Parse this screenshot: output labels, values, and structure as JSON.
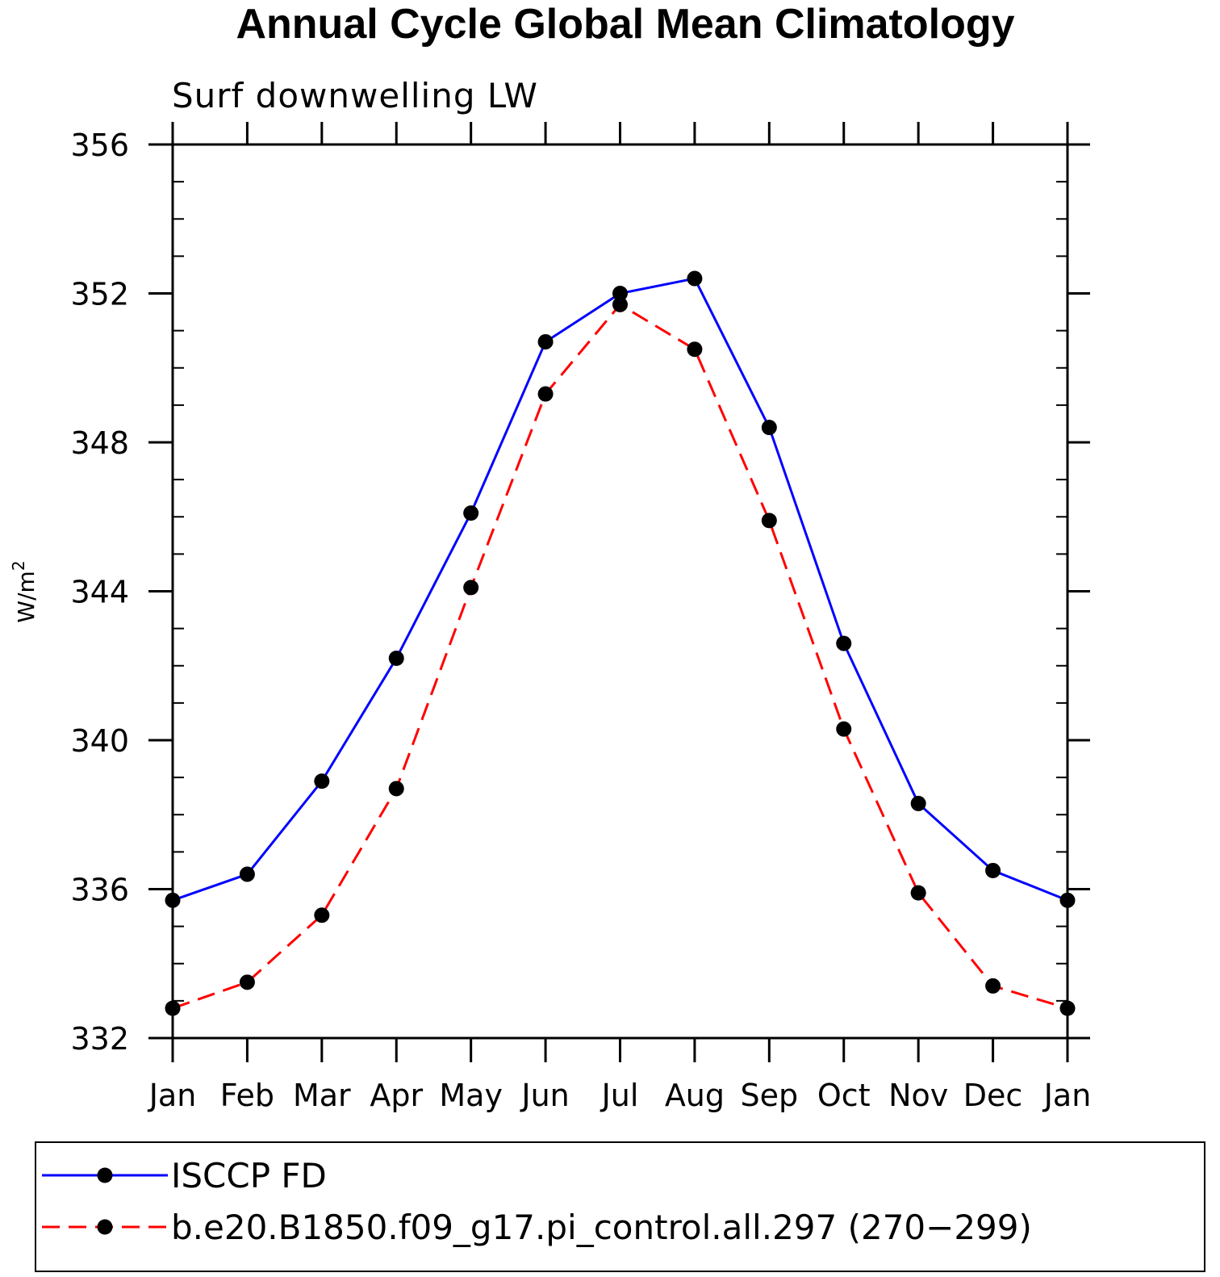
{
  "chart_data": {
    "type": "line",
    "title": "Annual Cycle Global Mean Climatology",
    "subtitle": "Surf downwelling LW",
    "ylabel": "W/m",
    "ylabel_sup": "2",
    "xlabel": "",
    "categories": [
      "Jan",
      "Feb",
      "Mar",
      "Apr",
      "May",
      "Jun",
      "Jul",
      "Aug",
      "Sep",
      "Oct",
      "Nov",
      "Dec",
      "Jan"
    ],
    "ylim": [
      332,
      356
    ],
    "yticks": [
      332,
      336,
      340,
      344,
      348,
      352,
      356
    ],
    "y_minor_step": 1,
    "grid": false,
    "legend_position": "bottom",
    "series": [
      {
        "name": "ISCCP FD",
        "color": "#0000ff",
        "dash": "solid",
        "values": [
          335.7,
          336.4,
          338.9,
          342.2,
          346.1,
          350.7,
          352.0,
          352.4,
          348.4,
          342.6,
          338.3,
          336.5,
          335.7
        ]
      },
      {
        "name": "b.e20.B1850.f09_g17.pi_control.all.297 (270−299)",
        "color": "#ff0000",
        "dash": "dashed",
        "values": [
          332.8,
          333.5,
          335.3,
          338.7,
          344.1,
          349.3,
          351.7,
          350.5,
          345.9,
          340.3,
          335.9,
          333.4,
          332.8
        ]
      }
    ]
  }
}
